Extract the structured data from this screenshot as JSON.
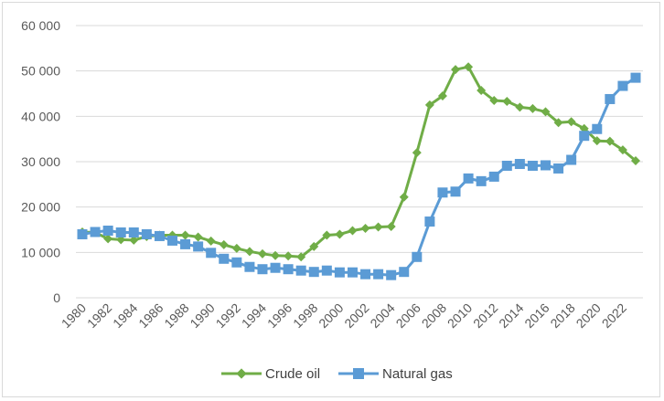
{
  "chart_data": {
    "type": "line",
    "title": "",
    "xlabel": "",
    "ylabel": "",
    "ylim": [
      0,
      60000
    ],
    "y_ticks": [
      0,
      10000,
      20000,
      30000,
      40000,
      50000,
      60000
    ],
    "y_tick_labels": [
      "0",
      "10 000",
      "20 000",
      "30 000",
      "40 000",
      "50 000",
      "60 000"
    ],
    "x": [
      1980,
      1981,
      1982,
      1983,
      1984,
      1985,
      1986,
      1987,
      1988,
      1989,
      1990,
      1991,
      1992,
      1993,
      1994,
      1995,
      1996,
      1997,
      1998,
      1999,
      2000,
      2001,
      2002,
      2003,
      2004,
      2005,
      2006,
      2007,
      2008,
      2009,
      2010,
      2011,
      2012,
      2013,
      2014,
      2015,
      2016,
      2017,
      2018,
      2019,
      2020,
      2021,
      2022,
      2023
    ],
    "x_tick_labels": [
      "1980",
      "1982",
      "1984",
      "1986",
      "1988",
      "1990",
      "1992",
      "1994",
      "1996",
      "1998",
      "2000",
      "2002",
      "2004",
      "2006",
      "2008",
      "2010",
      "2012",
      "2014",
      "2016",
      "2018",
      "2020",
      "2022"
    ],
    "grid": "horizontal",
    "legend_position": "bottom",
    "series": [
      {
        "name": "Crude oil",
        "color": "#70ad47",
        "marker": "diamond",
        "values": [
          14500,
          14400,
          13000,
          12800,
          12700,
          13500,
          13800,
          13800,
          13800,
          13400,
          12500,
          11700,
          10900,
          10200,
          9700,
          9300,
          9200,
          9000,
          11300,
          13800,
          14000,
          14800,
          15300,
          15600,
          15700,
          22200,
          32000,
          42500,
          44500,
          50300,
          50900,
          45700,
          43500,
          43300,
          42000,
          41700,
          41000,
          38600,
          38800,
          37300,
          34600,
          34500,
          32600,
          30200
        ]
      },
      {
        "name": "Natural gas",
        "color": "#5b9bd5",
        "marker": "square",
        "values": [
          14000,
          14500,
          14800,
          14400,
          14400,
          14000,
          13600,
          12600,
          11800,
          11300,
          9900,
          8600,
          7800,
          6800,
          6300,
          6600,
          6300,
          6000,
          5700,
          6000,
          5600,
          5600,
          5200,
          5200,
          5000,
          5700,
          9000,
          16800,
          23200,
          23400,
          26300,
          25700,
          26700,
          29100,
          29500,
          29100,
          29200,
          28500,
          30400,
          35700,
          37200,
          43800,
          46700,
          48500
        ]
      }
    ]
  }
}
